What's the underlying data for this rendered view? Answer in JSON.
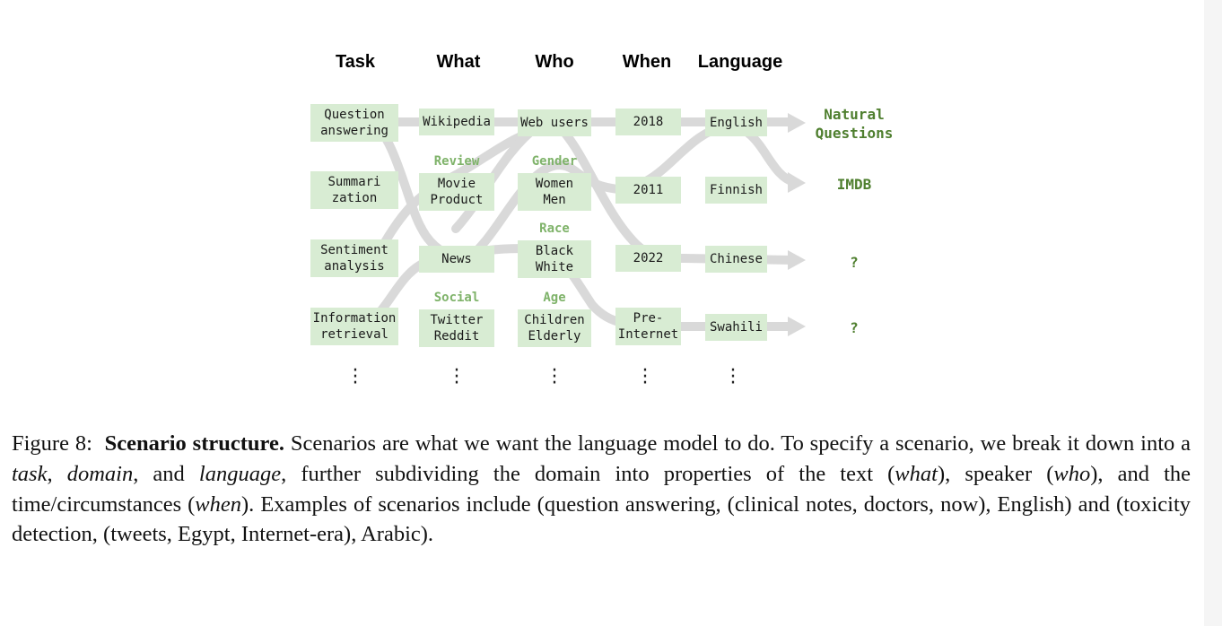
{
  "headers": {
    "task": "Task",
    "what": "What",
    "who": "Who",
    "when": "When",
    "language": "Language"
  },
  "task": {
    "qa": [
      "Question",
      "answering"
    ],
    "summ": [
      "Summari",
      "zation"
    ],
    "sent": [
      "Sentiment",
      "analysis"
    ],
    "ir": [
      "Information",
      "retrieval"
    ]
  },
  "what": {
    "wikipedia": "Wikipedia",
    "review_label": "Review",
    "review": [
      "Movie",
      "Product"
    ],
    "news": "News",
    "social_label": "Social",
    "social": [
      "Twitter",
      "Reddit"
    ]
  },
  "who": {
    "web_users": "Web users",
    "gender_label": "Gender",
    "gender": [
      "Women",
      "Men"
    ],
    "race_label": "Race",
    "race": [
      "Black",
      "White"
    ],
    "age_label": "Age",
    "age": [
      "Children",
      "Elderly"
    ]
  },
  "when": {
    "y2018": "2018",
    "y2011": "2011",
    "y2022": "2022",
    "pre": [
      "Pre-",
      "Internet"
    ]
  },
  "language": {
    "english": "English",
    "finnish": "Finnish",
    "chinese": "Chinese",
    "swahili": "Swahili"
  },
  "results": {
    "nq": [
      "Natural",
      "Questions"
    ],
    "imdb": "IMDB",
    "unknown1": "?",
    "unknown2": "?"
  },
  "colors": {
    "box": "#d8ecd3",
    "flow": "#d9d9d9",
    "category": "#7fb36a",
    "result": "#4f7f2f"
  },
  "caption": {
    "label": "Figure 8:",
    "title": "Scenario structure.",
    "s1": "Scenarios are what we want the language model to do. To specify a scenario, we break it down into a",
    "task": "task",
    "c1": ",",
    "domain": "domain",
    "c2": ", and",
    "language": "language",
    "s2": ", further subdividing the domain into properties of the text (",
    "what": "what",
    "s3": "), speaker (",
    "who": "who",
    "s4": "), and the time/circumstances (",
    "when": "when",
    "s5": "). Examples of scenarios include (question answering, (clinical notes, doctors, now), English) and (toxicity detection, (tweets, Egypt, Internet-era), Arabic)."
  }
}
